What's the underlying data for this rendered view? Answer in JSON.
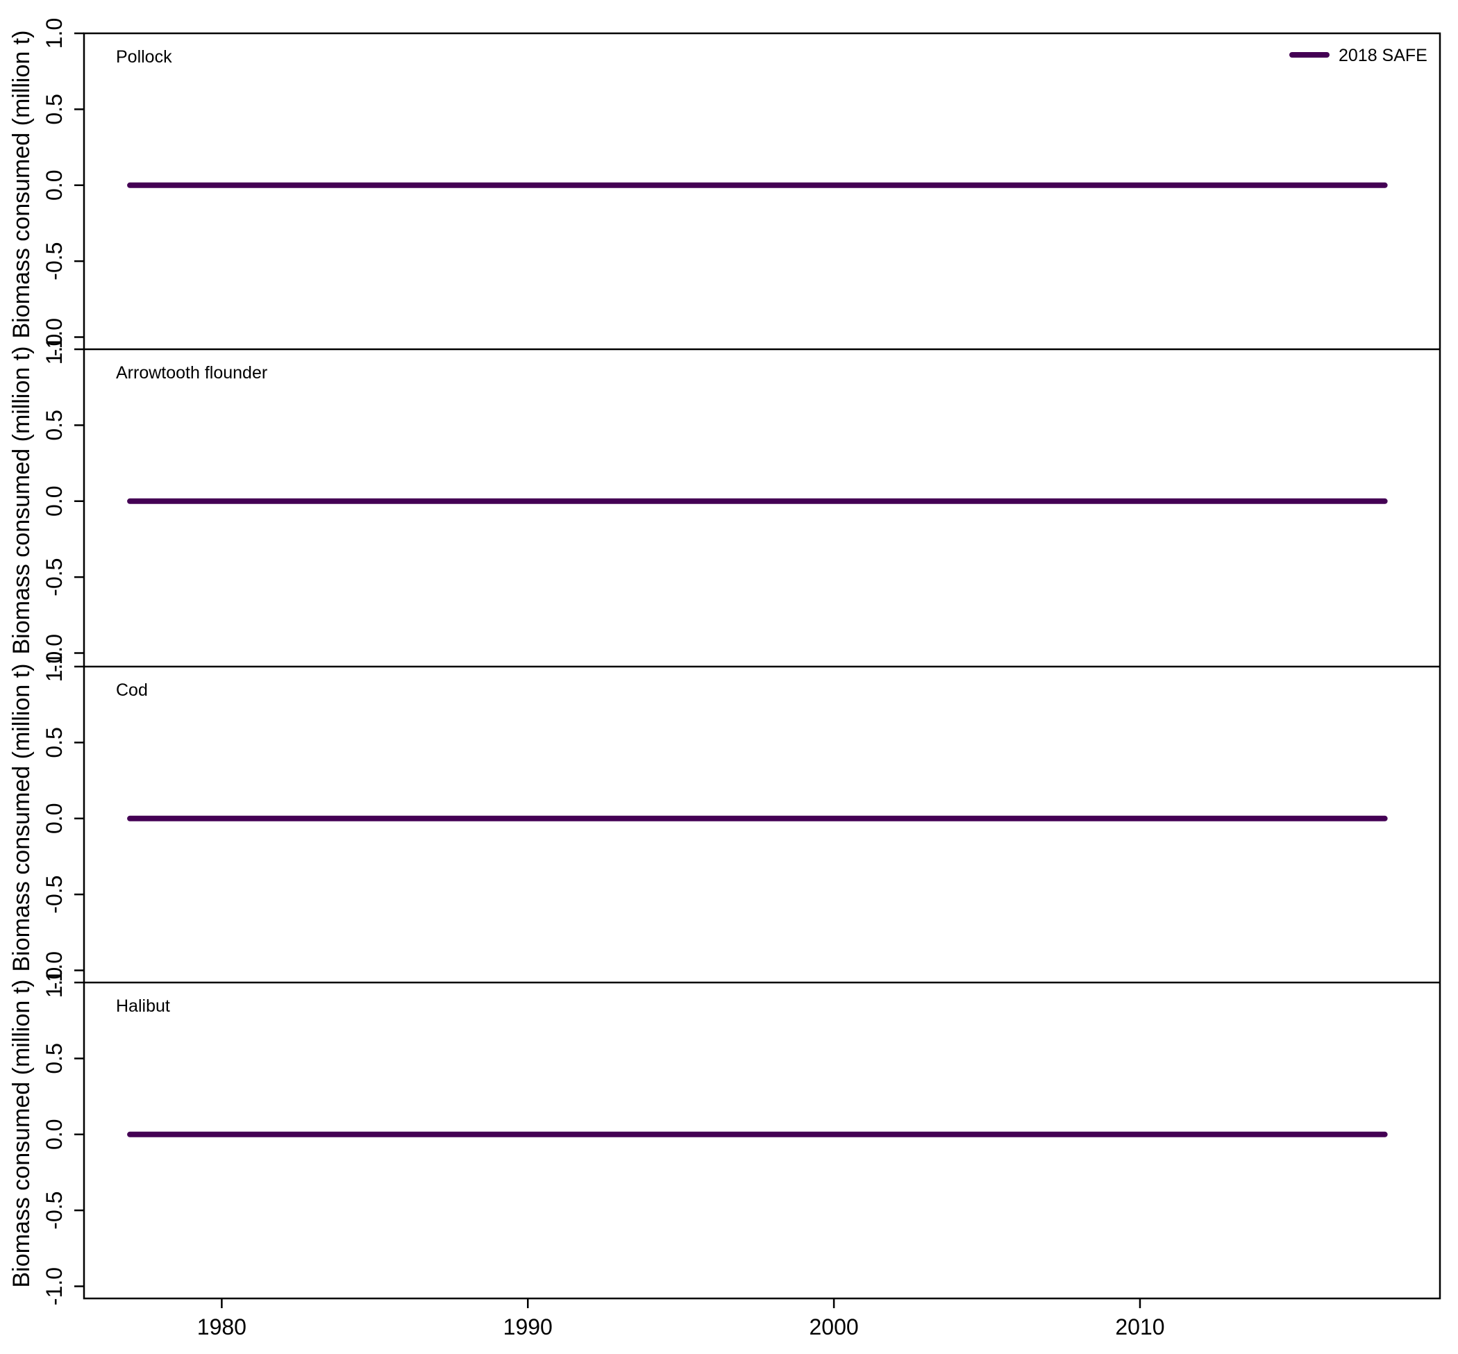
{
  "chart_data": {
    "type": "line",
    "x": [
      1977,
      1978,
      1979,
      1980,
      1981,
      1982,
      1983,
      1984,
      1985,
      1986,
      1987,
      1988,
      1989,
      1990,
      1991,
      1992,
      1993,
      1994,
      1995,
      1996,
      1997,
      1998,
      1999,
      2000,
      2001,
      2002,
      2003,
      2004,
      2005,
      2006,
      2007,
      2008,
      2009,
      2010,
      2011,
      2012,
      2013,
      2014,
      2015,
      2016,
      2017,
      2018
    ],
    "xlim": [
      1975.5,
      2019.8
    ],
    "x_ticks": [
      "1980",
      "1990",
      "2000",
      "2010"
    ],
    "x_tick_values": [
      1980,
      1990,
      2000,
      2010
    ],
    "ylabel": "Biomass consumed (million t)",
    "ylim": [
      -1.08,
      1.0
    ],
    "y_ticks": [
      "-1.0",
      "-0.5",
      "0.0",
      "0.5",
      "1.0"
    ],
    "y_tick_values": [
      -1.0,
      -0.5,
      0.0,
      0.5,
      1.0
    ],
    "legend": {
      "label": "2018 SAFE",
      "color": "#440154",
      "position": "top-right"
    },
    "panels": [
      {
        "label": "Pollock",
        "values": [
          0,
          0,
          0,
          0,
          0,
          0,
          0,
          0,
          0,
          0,
          0,
          0,
          0,
          0,
          0,
          0,
          0,
          0,
          0,
          0,
          0,
          0,
          0,
          0,
          0,
          0,
          0,
          0,
          0,
          0,
          0,
          0,
          0,
          0,
          0,
          0,
          0,
          0,
          0,
          0,
          0,
          0
        ]
      },
      {
        "label": "Arrowtooth flounder",
        "values": [
          0,
          0,
          0,
          0,
          0,
          0,
          0,
          0,
          0,
          0,
          0,
          0,
          0,
          0,
          0,
          0,
          0,
          0,
          0,
          0,
          0,
          0,
          0,
          0,
          0,
          0,
          0,
          0,
          0,
          0,
          0,
          0,
          0,
          0,
          0,
          0,
          0,
          0,
          0,
          0,
          0,
          0
        ]
      },
      {
        "label": "Cod",
        "values": [
          0,
          0,
          0,
          0,
          0,
          0,
          0,
          0,
          0,
          0,
          0,
          0,
          0,
          0,
          0,
          0,
          0,
          0,
          0,
          0,
          0,
          0,
          0,
          0,
          0,
          0,
          0,
          0,
          0,
          0,
          0,
          0,
          0,
          0,
          0,
          0,
          0,
          0,
          0,
          0,
          0,
          0
        ]
      },
      {
        "label": "Halibut",
        "values": [
          0,
          0,
          0,
          0,
          0,
          0,
          0,
          0,
          0,
          0,
          0,
          0,
          0,
          0,
          0,
          0,
          0,
          0,
          0,
          0,
          0,
          0,
          0,
          0,
          0,
          0,
          0,
          0,
          0,
          0,
          0,
          0,
          0,
          0,
          0,
          0,
          0,
          0,
          0,
          0,
          0,
          0
        ]
      }
    ]
  }
}
